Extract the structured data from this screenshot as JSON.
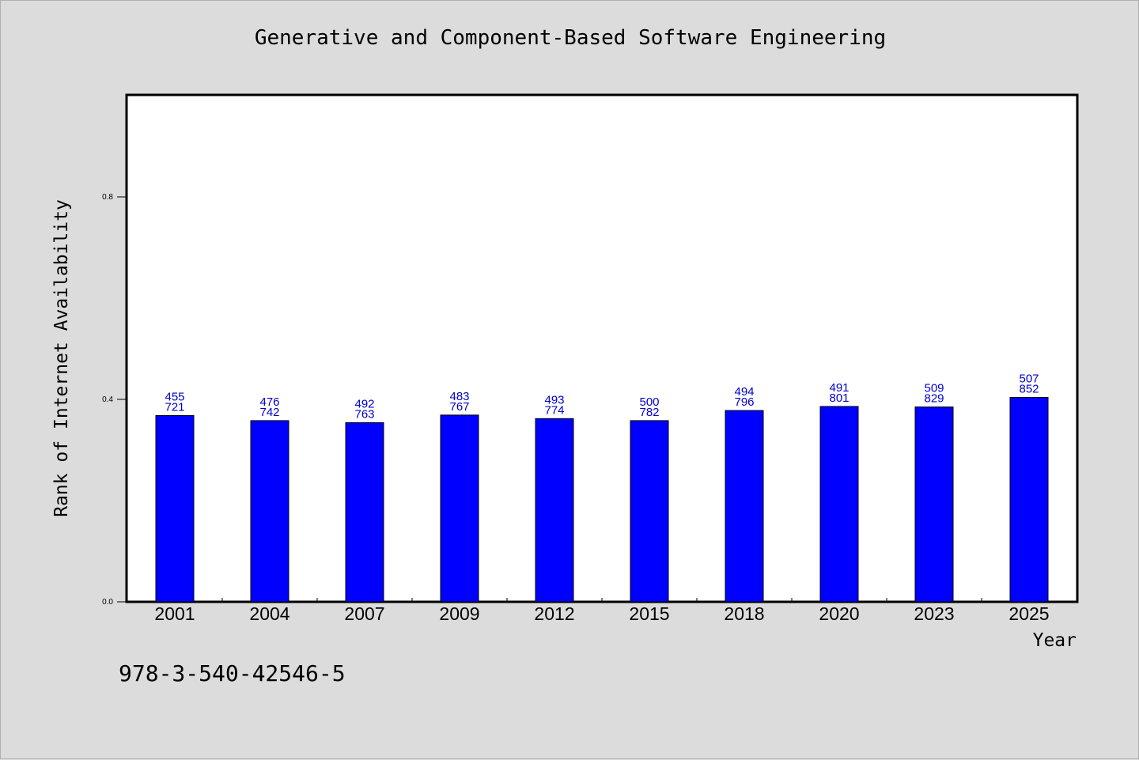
{
  "chart_data": {
    "type": "bar",
    "title": "Generative and Component-Based Software Engineering",
    "xlabel": "Year",
    "ylabel": "Rank of Internet Availability",
    "categories": [
      "2001",
      "2004",
      "2007",
      "2009",
      "2012",
      "2015",
      "2018",
      "2020",
      "2023",
      "2025"
    ],
    "values": [
      0.368,
      0.358,
      0.354,
      0.369,
      0.362,
      0.358,
      0.378,
      0.386,
      0.385,
      0.404
    ],
    "labels_top": [
      "455",
      "476",
      "492",
      "483",
      "493",
      "500",
      "494",
      "491",
      "509",
      "507"
    ],
    "labels_bottom": [
      "721",
      "742",
      "763",
      "767",
      "774",
      "782",
      "796",
      "801",
      "829",
      "852"
    ],
    "yticks": [
      0.0,
      0.4,
      0.8
    ],
    "ytick_labels": [
      "0.0",
      "0.4",
      "0.8"
    ],
    "ylim": [
      0.0,
      1.0
    ],
    "bar_color": "#0000ff",
    "label_color": "#0000cc",
    "grid": false,
    "legend": "none"
  },
  "footnote": "978-3-540-42546-5"
}
